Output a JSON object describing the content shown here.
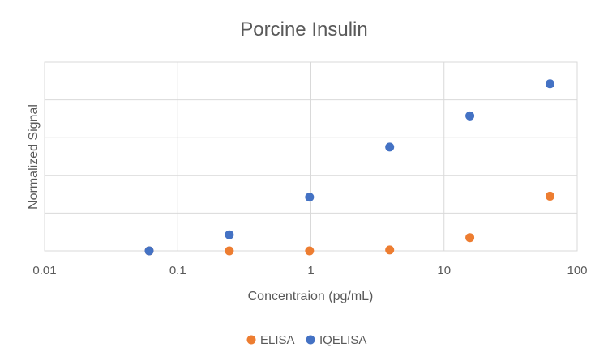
{
  "chart_data": {
    "type": "scatter",
    "title": "Porcine Insulin",
    "xlabel": "Concentraion (pg/mL)",
    "ylabel": "Normalized Signal",
    "x_scale": "log",
    "xlim": [
      0.01,
      100
    ],
    "x_ticks": [
      0.01,
      0.1,
      1,
      10,
      100
    ],
    "x_tick_labels": [
      "0.01",
      "0.1",
      "1",
      "10",
      "100"
    ],
    "ylim": [
      0,
      1
    ],
    "y_ticks": [
      0,
      0.2,
      0.4,
      0.6,
      0.8,
      1.0
    ],
    "y_tick_labels_shown": false,
    "grid": true,
    "legend_position": "bottom",
    "series": [
      {
        "name": "ELISA",
        "color": "#ED7D31",
        "x": [
          0.061,
          0.244,
          0.977,
          3.906,
          15.625,
          62.5
        ],
        "y": [
          0.0,
          0.0,
          0.0,
          0.005,
          0.07,
          0.29
        ]
      },
      {
        "name": "IQELISA",
        "color": "#4472C4",
        "x": [
          0.061,
          0.244,
          0.977,
          3.906,
          15.625,
          62.5
        ],
        "y": [
          0.0,
          0.085,
          0.285,
          0.55,
          0.715,
          0.885
        ]
      }
    ]
  }
}
